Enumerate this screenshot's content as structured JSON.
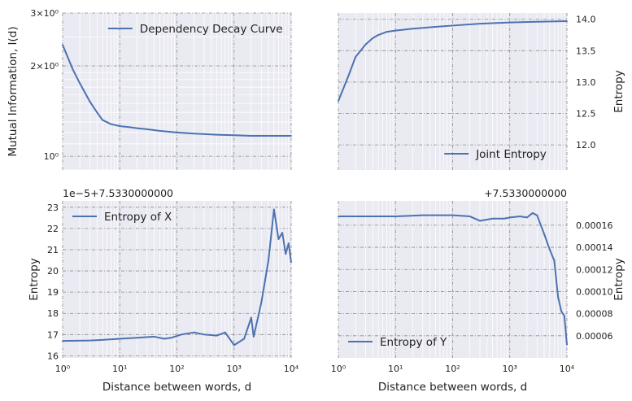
{
  "figure": {
    "xlabel": "Distance between words, d"
  },
  "colors": {
    "line": "#4c72b0",
    "axes_bg": "#eaeaf2",
    "grid_major": "#8c8c8c",
    "grid_minor": "#ffffff"
  },
  "chart_data": [
    {
      "type": "line",
      "panel": "top-left",
      "xscale": "log",
      "yscale": "log",
      "xlim": [
        1,
        10000
      ],
      "ylim": [
        0.9,
        3.0
      ],
      "ylabel": "Mutual Information, I(d)",
      "xlabel": "",
      "yticks": [
        {
          "v": 1,
          "label": "10⁰"
        },
        {
          "v": 2,
          "label": "2×10⁰"
        },
        {
          "v": 3,
          "label": "3×10⁰"
        }
      ],
      "xticks": [],
      "offset_text": "",
      "legend": "upper right",
      "series": [
        {
          "name": "Dependency Decay Curve",
          "x": [
            1,
            1.5,
            2,
            3,
            4,
            5,
            7,
            10,
            15,
            20,
            30,
            50,
            100,
            200,
            500,
            1000,
            2000,
            5000,
            10000
          ],
          "y": [
            2.35,
            1.95,
            1.75,
            1.52,
            1.4,
            1.32,
            1.28,
            1.26,
            1.25,
            1.24,
            1.23,
            1.215,
            1.2,
            1.19,
            1.18,
            1.175,
            1.17,
            1.17,
            1.17
          ]
        }
      ]
    },
    {
      "type": "line",
      "panel": "top-right",
      "xscale": "log",
      "yscale": "linear",
      "xlim": [
        1,
        10000
      ],
      "ylim": [
        11.6,
        14.1
      ],
      "ylabel": "Entropy",
      "xlabel": "",
      "yticks": [
        {
          "v": 12.0,
          "label": "12.0"
        },
        {
          "v": 12.5,
          "label": "12.5"
        },
        {
          "v": 13.0,
          "label": "13.0"
        },
        {
          "v": 13.5,
          "label": "13.5"
        },
        {
          "v": 14.0,
          "label": "14.0"
        }
      ],
      "xticks": [],
      "offset_text": "",
      "legend": "lower right",
      "series": [
        {
          "name": "Joint Entropy",
          "x": [
            1,
            1.5,
            2,
            3,
            4,
            5,
            7,
            10,
            20,
            50,
            100,
            300,
            1000,
            3000,
            10000
          ],
          "y": [
            12.7,
            13.1,
            13.4,
            13.6,
            13.7,
            13.75,
            13.8,
            13.82,
            13.85,
            13.88,
            13.9,
            13.93,
            13.95,
            13.96,
            13.97
          ]
        }
      ]
    },
    {
      "type": "line",
      "panel": "bottom-left",
      "xscale": "log",
      "yscale": "linear",
      "xlim": [
        1,
        10000
      ],
      "ylim": [
        15.9,
        23.3
      ],
      "ylabel": "Entropy",
      "xlabel": "Distance between words, d",
      "yticks": [
        {
          "v": 16,
          "label": "16"
        },
        {
          "v": 17,
          "label": "17"
        },
        {
          "v": 18,
          "label": "18"
        },
        {
          "v": 19,
          "label": "19"
        },
        {
          "v": 20,
          "label": "20"
        },
        {
          "v": 21,
          "label": "21"
        },
        {
          "v": 22,
          "label": "22"
        },
        {
          "v": 23,
          "label": "23"
        }
      ],
      "xticks": [
        {
          "v": 1,
          "label": "10⁰"
        },
        {
          "v": 10,
          "label": "10¹"
        },
        {
          "v": 100,
          "label": "10²"
        },
        {
          "v": 1000,
          "label": "10³"
        },
        {
          "v": 10000,
          "label": "10⁴"
        }
      ],
      "offset_text": "1e−5+7.5330000000",
      "legend": "upper left",
      "series": [
        {
          "name": "Entropy of X",
          "x": [
            1,
            3,
            5,
            10,
            20,
            40,
            60,
            80,
            120,
            200,
            300,
            500,
            700,
            1000,
            1500,
            2000,
            2200,
            3000,
            4000,
            5000,
            6000,
            7000,
            8000,
            9000,
            10000
          ],
          "y": [
            16.7,
            16.72,
            16.75,
            16.8,
            16.85,
            16.9,
            16.8,
            16.85,
            17.0,
            17.1,
            17.0,
            16.95,
            17.1,
            16.5,
            16.8,
            17.8,
            16.9,
            18.5,
            20.5,
            22.9,
            21.5,
            21.8,
            20.8,
            21.3,
            20.4
          ]
        }
      ]
    },
    {
      "type": "line",
      "panel": "bottom-right",
      "xscale": "log",
      "yscale": "linear",
      "xlim": [
        1,
        10000
      ],
      "ylim": [
        4e-05,
        0.000182
      ],
      "ylabel": "Entropy",
      "xlabel": "Distance between words, d",
      "yticks": [
        {
          "v": 6e-05,
          "label": "0.00006"
        },
        {
          "v": 8e-05,
          "label": "0.00008"
        },
        {
          "v": 0.0001,
          "label": "0.00010"
        },
        {
          "v": 0.00012,
          "label": "0.00012"
        },
        {
          "v": 0.00014,
          "label": "0.00014"
        },
        {
          "v": 0.00016,
          "label": "0.00016"
        }
      ],
      "xticks": [
        {
          "v": 1,
          "label": "10⁰"
        },
        {
          "v": 10,
          "label": "10¹"
        },
        {
          "v": 100,
          "label": "10²"
        },
        {
          "v": 1000,
          "label": "10³"
        },
        {
          "v": 10000,
          "label": "10⁴"
        }
      ],
      "offset_text": "+7.5330000000",
      "legend": "lower left",
      "series": [
        {
          "name": "Entropy of Y",
          "x": [
            1,
            3,
            10,
            30,
            100,
            200,
            300,
            500,
            800,
            1000,
            1500,
            2000,
            2500,
            3000,
            4000,
            5000,
            6000,
            7000,
            8000,
            9000,
            10000
          ],
          "y": [
            0.000168,
            0.000168,
            0.000168,
            0.000169,
            0.000169,
            0.000168,
            0.000164,
            0.000166,
            0.000166,
            0.000167,
            0.000168,
            0.000167,
            0.000171,
            0.000169,
            0.000152,
            0.000138,
            0.000128,
            9.5e-05,
            8.2e-05,
            7.8e-05,
            5.2e-05
          ]
        }
      ]
    }
  ]
}
